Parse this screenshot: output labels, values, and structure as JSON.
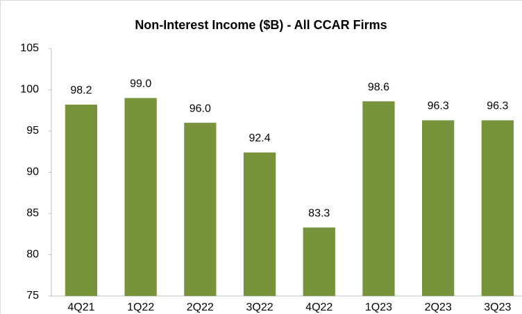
{
  "chart_data": {
    "type": "bar",
    "title": "Non-Interest Income ($B) - All CCAR Firms",
    "categories": [
      "4Q21",
      "1Q22",
      "2Q22",
      "3Q22",
      "4Q22",
      "1Q23",
      "2Q23",
      "3Q23"
    ],
    "values": [
      98.2,
      99.0,
      96.0,
      92.4,
      83.3,
      98.6,
      96.3,
      96.3
    ],
    "value_labels": [
      "98.2",
      "99.0",
      "96.0",
      "92.4",
      "83.3",
      "98.6",
      "96.3",
      "96.3"
    ],
    "color": "#77933c",
    "ylim": [
      75,
      105
    ],
    "yticks": [
      75,
      80,
      85,
      90,
      95,
      100,
      105
    ],
    "grid": false
  }
}
